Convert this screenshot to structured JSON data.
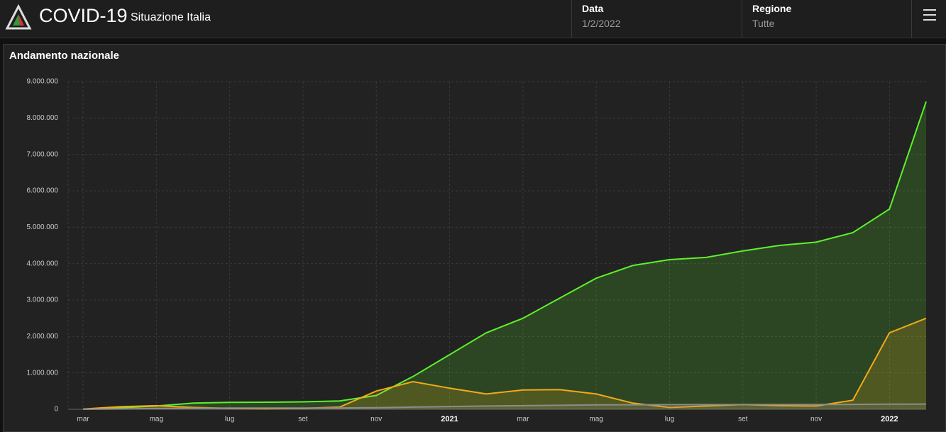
{
  "header": {
    "title": "COVID-19",
    "subtitle": "Situazione Italia",
    "filters": [
      {
        "label": "Data",
        "value": "1/2/2022"
      },
      {
        "label": "Regione",
        "value": "Tutte"
      }
    ]
  },
  "chart_data": {
    "type": "area",
    "title": "Andamento nazionale",
    "categories": [
      "mar",
      null,
      "mag",
      null,
      "lug",
      null,
      "set",
      null,
      "nov",
      null,
      "2021",
      null,
      "mar",
      null,
      "mag",
      null,
      "lug",
      null,
      "set",
      null,
      "nov",
      null,
      "2022",
      null
    ],
    "series": [
      {
        "color": "#5ef02c",
        "values": [
          5000,
          40000,
          90000,
          170000,
          190000,
          195000,
          205000,
          230000,
          380000,
          900000,
          1500000,
          2100000,
          2500000,
          3050000,
          3600000,
          3950000,
          4110000,
          4170000,
          4350000,
          4500000,
          4590000,
          4850000,
          5500000,
          8450000
        ]
      },
      {
        "color": "#f2aa1a",
        "values": [
          5000,
          70000,
          100000,
          50000,
          25000,
          15000,
          25000,
          60000,
          500000,
          760000,
          580000,
          420000,
          530000,
          540000,
          420000,
          170000,
          50000,
          90000,
          130000,
          100000,
          90000,
          250000,
          2100000,
          2500000
        ]
      },
      {
        "color": "#8c8c8c",
        "values": [
          0,
          10000,
          25000,
          30000,
          33000,
          34000,
          36000,
          37000,
          45000,
          60000,
          75000,
          90000,
          100000,
          110000,
          120000,
          125000,
          127000,
          128000,
          130000,
          132000,
          133000,
          135000,
          140000,
          145000
        ]
      }
    ],
    "ylim": [
      0,
      9000000
    ],
    "yticks": [
      0,
      {
        "value": 1000000,
        "label": "1.000.000"
      },
      {
        "value": 2000000,
        "label": "2.000.000"
      },
      {
        "value": 3000000,
        "label": "3.000.000"
      },
      {
        "value": 4000000,
        "label": "4.000.000"
      },
      {
        "value": 5000000,
        "label": "5.000.000"
      },
      {
        "value": 6000000,
        "label": "6.000.000"
      },
      {
        "value": 7000000,
        "label": "7.000.000"
      },
      {
        "value": 8000000,
        "label": "8.000.000"
      },
      {
        "value": 9000000,
        "label": "9.000.000"
      }
    ],
    "grid": true
  }
}
